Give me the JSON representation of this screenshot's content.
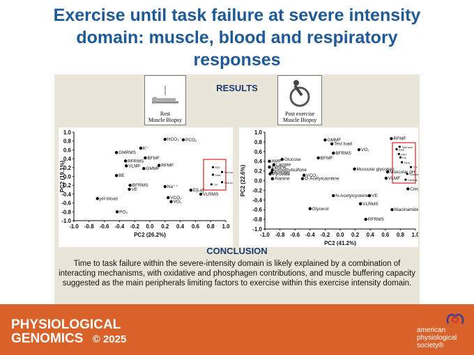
{
  "title": "Exercise until task failure at severe intensity domain: muscle, blood and respiratory responses",
  "results_label": "RESULTS",
  "icons": [
    {
      "line1": "Rest",
      "line2": "Muscle Biopsy"
    },
    {
      "line1": "Post exercise",
      "line2": "Muscle Biopsy"
    }
  ],
  "chart_data": [
    {
      "type": "scatter",
      "xlabel": "PC2 (26.2%)",
      "ylabel": "PC2 (19.1%)",
      "color": "#000000",
      "xlim": [
        -1,
        1
      ],
      "ylim": [
        -1,
        1
      ],
      "xticks": [
        {
          "value": -1,
          "label": "-1.0"
        },
        -0.8,
        -0.6,
        -0.4,
        -0.2,
        {
          "value": 0,
          "label": "0.0"
        },
        0.2,
        0.4,
        0.6,
        0.8,
        {
          "value": 1,
          "label": "1.0"
        }
      ],
      "yticks": [
        {
          "value": -1,
          "label": "-1.0"
        },
        -0.8,
        -0.6,
        -0.4,
        -0.2,
        {
          "value": 0,
          "label": "0.0"
        },
        0.2,
        0.4,
        0.6,
        0.8,
        {
          "value": 1,
          "label": "1.0"
        }
      ],
      "point_labels": [
        "HCO₃⁻",
        "PCO₂",
        "K⁺",
        "GMRMS",
        "BFMF",
        "RFRMS",
        "RFMF",
        "VLMF",
        "GMMF",
        "BE",
        "BFRMS",
        "Na⁺⁺",
        "VE",
        "pH blood",
        "VCO₂",
        "VO₂",
        "E[La]",
        "VLRMS",
        "PO₂",
        "ERO",
        "Test load",
        "Estat",
        "TTF",
        "Total work"
      ],
      "x": [
        0.2,
        0.44,
        -0.12,
        -0.44,
        -0.06,
        -0.32,
        0.12,
        -0.31,
        -0.08,
        -0.44,
        -0.26,
        0.2,
        -0.27,
        -0.69,
        0.24,
        0.28,
        0.54,
        0.67,
        -0.43,
        0.83,
        0.95,
        0.83,
        0.81,
        0.95
      ],
      "values": [
        0.84,
        0.83,
        0.64,
        0.54,
        0.42,
        0.35,
        0.25,
        0.24,
        0.18,
        0.02,
        -0.2,
        -0.23,
        -0.29,
        -0.5,
        -0.48,
        -0.57,
        -0.31,
        -0.4,
        -0.8,
        0.21,
        0.1,
        0.04,
        -0.18,
        -0.13
      ]
    },
    {
      "type": "scatter",
      "xlabel": "PC2 (41.2%)",
      "ylabel": "PC2 (22.6%)",
      "color": "#000000",
      "xlim": [
        -1,
        1
      ],
      "ylim": [
        -1,
        1
      ],
      "xticks": [
        {
          "value": -1,
          "label": "-1.0"
        },
        -0.8,
        -0.6,
        -0.4,
        -0.2,
        {
          "value": 0,
          "label": "0.0"
        },
        0.2,
        0.4,
        0.6,
        0.8,
        {
          "value": 1,
          "label": "1.0"
        }
      ],
      "yticks": [
        {
          "value": -1,
          "label": "-1.0"
        },
        -0.8,
        -0.6,
        -0.4,
        -0.2,
        {
          "value": 0,
          "label": "0.0"
        },
        0.2,
        0.4,
        0.6,
        0.8,
        {
          "value": 1,
          "label": "1.0"
        }
      ],
      "point_labels": [
        "GMMF",
        "RFMF",
        "Test load",
        "VO₂",
        "BFRMS",
        "BFMF",
        "AMP",
        "Glucose",
        "Inosine",
        "Lactate",
        "Dimethylsulfone",
        "Pyruvate",
        "Acetate",
        "Alanine",
        "O-Acetylcarnitine",
        "VCO₂",
        "Muscular glycogen",
        "Muscular pH",
        "VLMF",
        "N-Acetylcysteine",
        "VE",
        "VLRMS",
        "Niacinamide",
        "RFRMS",
        "Glycerol",
        "Creatine phosphate",
        "Estat",
        "Total work",
        "ERO",
        "EIa",
        "E[La]",
        "TTF",
        "Glutamate",
        "Carnitine"
      ],
      "x": [
        -0.2,
        0.68,
        -0.11,
        0.25,
        -0.09,
        -0.29,
        -0.94,
        -0.77,
        -0.94,
        -0.88,
        -0.9,
        -0.93,
        -0.91,
        -0.9,
        -0.5,
        -0.48,
        0.19,
        0.63,
        0.61,
        -0.09,
        0.39,
        0.27,
        0.69,
        0.34,
        -0.4,
        0.9,
        0.75,
        0.79,
        0.78,
        0.8,
        0.82,
        0.94,
        0.89,
        0.87
      ],
      "values": [
        0.84,
        0.87,
        0.76,
        0.64,
        0.57,
        0.47,
        0.4,
        0.44,
        0.28,
        0.33,
        0.22,
        0.14,
        0.17,
        0.04,
        0.04,
        0.11,
        0.24,
        0.18,
        0.05,
        -0.31,
        -0.31,
        -0.48,
        -0.6,
        -0.8,
        -0.58,
        -0.17,
        0.65,
        0.7,
        0.55,
        0.48,
        0.38,
        0.28,
        0.14,
        0.02
      ]
    }
  ],
  "conclusion_label": "CONCLUSION",
  "conclusion": "Time to task failure within the severe-intensity domain is likely explained by a combination of interacting mechanisms, with oxidative and phosphagen contributions, and muscle buffering capacity suggested as the main peripherals limiting factors to exercise within this exercise intensity domain.",
  "footer": {
    "journal_line1": "PHYSIOLOGICAL",
    "journal_line2": "GENOMICS",
    "copyright": "© 2025",
    "society_line1": "american",
    "society_line2": "physiological",
    "society_line3": "society®"
  }
}
